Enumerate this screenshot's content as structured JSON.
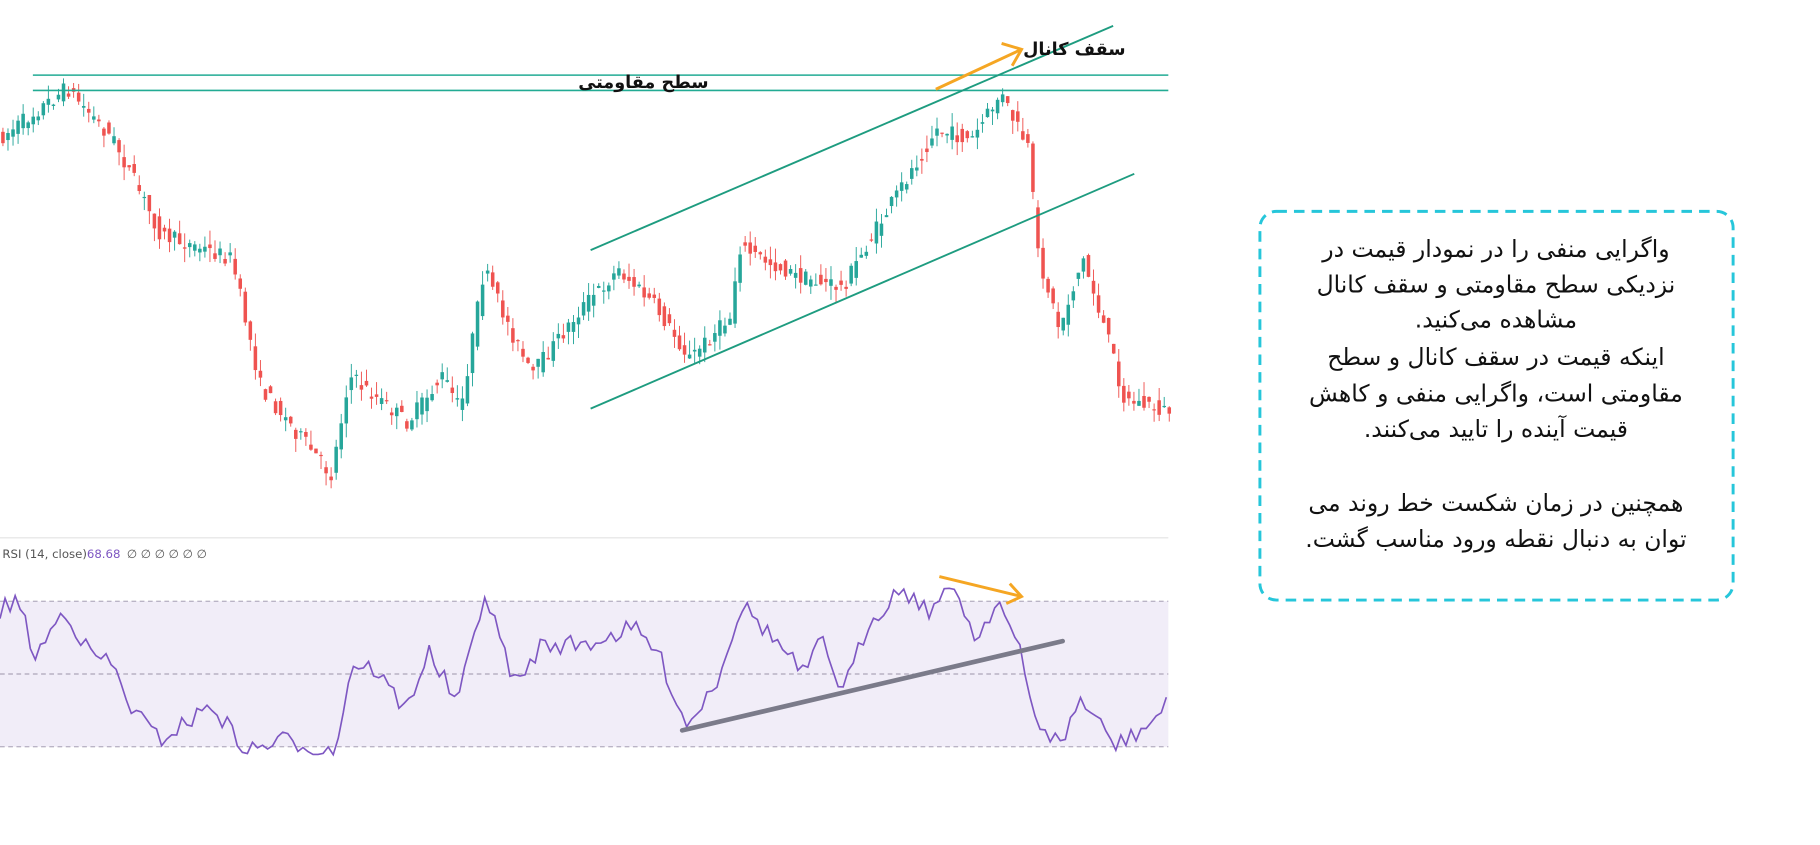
{
  "annotations": {
    "channel_top": "سقف کانال",
    "resistance": "سطح مقاومتی"
  },
  "indicator": {
    "label": "RSI (14, close)",
    "value": 68.68,
    "extra": "∅ ∅ ∅ ∅ ∅ ∅"
  },
  "note": {
    "lines": [
      "واگرایی منفی را در نمودار قیمت در",
      "نزدیکی سطح مقاومتی و سقف کانال",
      "مشاهده می‌کنید.",
      "اینکه قیمت در سقف کانال و سطح",
      "مقاومتی است، واگرایی منفی و کاهش",
      "قیمت آینده را تایید می‌کنند.",
      "همچنین در زمان شکست خط روند  می",
      "توان به دنبال نقطه ورود مناسب گشت."
    ]
  }
}
